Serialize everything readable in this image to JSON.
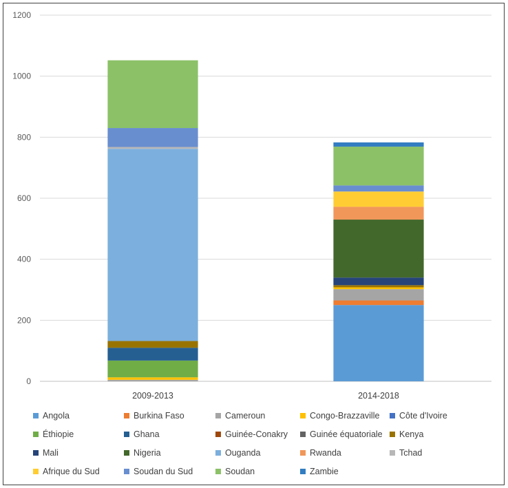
{
  "chart_data": {
    "type": "bar",
    "stacked": true,
    "categories": [
      "2009-2013",
      "2014-2018"
    ],
    "ylim": [
      0,
      1200
    ],
    "yticks": [
      0,
      200,
      400,
      600,
      800,
      1000,
      1200
    ],
    "grid": true,
    "legend_position": "bottom",
    "series": [
      {
        "name": "Angola",
        "color": "#5b9bd5",
        "values": [
          0,
          250
        ]
      },
      {
        "name": "Burkina Faso",
        "color": "#ed7d31",
        "values": [
          0,
          15
        ]
      },
      {
        "name": "Cameroun",
        "color": "#a5a5a5",
        "values": [
          5,
          37
        ]
      },
      {
        "name": "Congo-Brazzaville",
        "color": "#ffc000",
        "values": [
          8,
          6
        ]
      },
      {
        "name": "Côte d'Ivoire",
        "color": "#4472c4",
        "values": [
          0,
          0
        ]
      },
      {
        "name": "Éthiopie",
        "color": "#70ad47",
        "values": [
          55,
          0
        ]
      },
      {
        "name": "Ghana",
        "color": "#255e91",
        "values": [
          42,
          0
        ]
      },
      {
        "name": "Guinée-Conakry",
        "color": "#9e480e",
        "values": [
          0,
          0
        ]
      },
      {
        "name": "Guinée équatoriale",
        "color": "#636363",
        "values": [
          0,
          0
        ]
      },
      {
        "name": "Kenya",
        "color": "#997300",
        "values": [
          22,
          7
        ]
      },
      {
        "name": "Mali",
        "color": "#264478",
        "values": [
          0,
          25
        ]
      },
      {
        "name": "Nigeria",
        "color": "#43682b",
        "values": [
          0,
          190
        ]
      },
      {
        "name": "Ouganda",
        "color": "#7cafdd",
        "values": [
          630,
          0
        ]
      },
      {
        "name": "Rwanda",
        "color": "#f1975a",
        "values": [
          0,
          42
        ]
      },
      {
        "name": "Tchad",
        "color": "#b7b7b7",
        "values": [
          6,
          0
        ]
      },
      {
        "name": "Afrique du Sud",
        "color": "#ffcd33",
        "values": [
          0,
          50
        ]
      },
      {
        "name": "Soudan du Sud",
        "color": "#698ed0",
        "values": [
          62,
          20
        ]
      },
      {
        "name": "Soudan",
        "color": "#8cc168",
        "values": [
          222,
          127
        ]
      },
      {
        "name": "Zambie",
        "color": "#327dc2",
        "values": [
          0,
          14
        ]
      }
    ]
  }
}
